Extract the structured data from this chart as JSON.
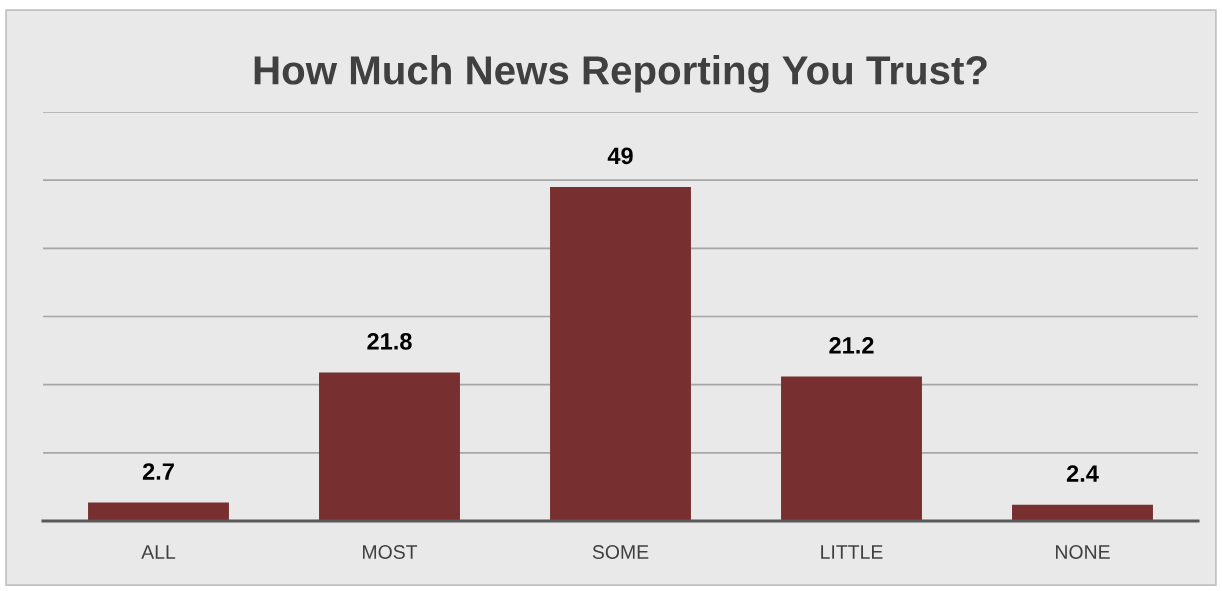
{
  "chart_data": {
    "type": "bar",
    "title": "How Much News Reporting You Trust?",
    "categories": [
      "ALL",
      "MOST",
      "SOME",
      "LITTLE",
      "NONE"
    ],
    "values": [
      2.7,
      21.8,
      49,
      21.2,
      2.4
    ],
    "color": "#772f2f",
    "ylim": [
      0,
      60
    ],
    "yticks": [
      {
        "value": 10,
        "label": null
      },
      {
        "value": 20,
        "label": null
      },
      {
        "value": 30,
        "label": null
      },
      {
        "value": 40,
        "label": null
      },
      {
        "value": 50,
        "label": null
      },
      {
        "value": 60,
        "label": null
      }
    ],
    "grid": "y",
    "tick_labels": "x",
    "data_labels": true
  }
}
